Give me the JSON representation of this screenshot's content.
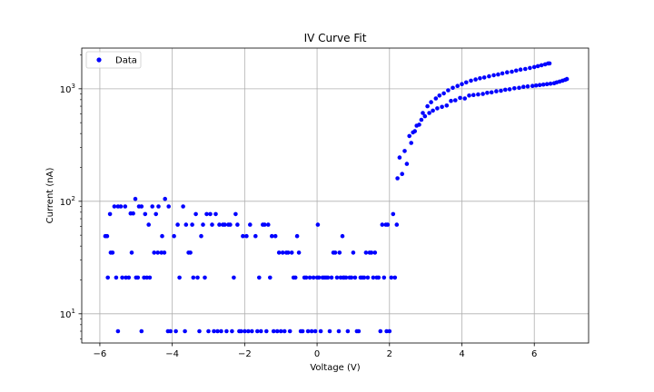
{
  "chart_data": {
    "type": "scatter",
    "title": "IV Curve Fit",
    "xlabel": "Voltage (V)",
    "ylabel": "Current (nA)",
    "xlim": [
      -6.5,
      7.5
    ],
    "ylim": [
      5.5,
      2300
    ],
    "yscale": "log",
    "grid": true,
    "legend": "top-left",
    "x_ticks": [
      {
        "value": -6,
        "label": "−6"
      },
      {
        "value": -4,
        "label": "−4"
      },
      {
        "value": -2,
        "label": "−2"
      },
      {
        "value": 0,
        "label": "0"
      },
      {
        "value": 2,
        "label": "2"
      },
      {
        "value": 4,
        "label": "4"
      },
      {
        "value": 6,
        "label": "6"
      }
    ],
    "y_ticks": [
      {
        "value": 10,
        "base": "10",
        "exp": "1"
      },
      {
        "value": 100,
        "base": "10",
        "exp": "2"
      },
      {
        "value": 1000,
        "base": "10",
        "exp": "3"
      }
    ],
    "series": [
      {
        "name": "Data",
        "color": "#0000ff",
        "marker": "circle",
        "points": [
          [
            -5.85,
            49
          ],
          [
            -5.8,
            49
          ],
          [
            -5.78,
            21
          ],
          [
            -5.72,
            77
          ],
          [
            -5.7,
            35
          ],
          [
            -5.65,
            35
          ],
          [
            -5.6,
            90
          ],
          [
            -5.55,
            21
          ],
          [
            -5.5,
            7
          ],
          [
            -5.5,
            90
          ],
          [
            -5.42,
            90
          ],
          [
            -5.38,
            21
          ],
          [
            -5.3,
            90
          ],
          [
            -5.28,
            21
          ],
          [
            -5.2,
            21
          ],
          [
            -5.15,
            78
          ],
          [
            -5.12,
            35
          ],
          [
            -5.08,
            78
          ],
          [
            -5.02,
            105
          ],
          [
            -5.0,
            21
          ],
          [
            -4.95,
            21
          ],
          [
            -4.92,
            90
          ],
          [
            -4.85,
            7
          ],
          [
            -4.85,
            90
          ],
          [
            -4.78,
            21
          ],
          [
            -4.75,
            77
          ],
          [
            -4.7,
            21
          ],
          [
            -4.65,
            62
          ],
          [
            -4.62,
            21
          ],
          [
            -4.55,
            90
          ],
          [
            -4.5,
            35
          ],
          [
            -4.45,
            77
          ],
          [
            -4.4,
            35
          ],
          [
            -4.38,
            90
          ],
          [
            -4.3,
            35
          ],
          [
            -4.28,
            49
          ],
          [
            -4.22,
            35
          ],
          [
            -4.2,
            105
          ],
          [
            -4.12,
            7
          ],
          [
            -4.1,
            90
          ],
          [
            -4.05,
            7
          ],
          [
            -3.95,
            49
          ],
          [
            -3.9,
            7
          ],
          [
            -3.85,
            62
          ],
          [
            -3.8,
            21
          ],
          [
            -3.7,
            90
          ],
          [
            -3.65,
            7
          ],
          [
            -3.62,
            62
          ],
          [
            -3.55,
            35
          ],
          [
            -3.5,
            35
          ],
          [
            -3.45,
            62
          ],
          [
            -3.42,
            21
          ],
          [
            -3.35,
            77
          ],
          [
            -3.3,
            21
          ],
          [
            -3.25,
            7
          ],
          [
            -3.2,
            49
          ],
          [
            -3.15,
            62
          ],
          [
            -3.1,
            21
          ],
          [
            -3.05,
            77
          ],
          [
            -3.0,
            7
          ],
          [
            -2.95,
            77
          ],
          [
            -2.9,
            62
          ],
          [
            -2.85,
            7
          ],
          [
            -2.8,
            77
          ],
          [
            -2.75,
            7
          ],
          [
            -2.7,
            62
          ],
          [
            -2.65,
            7
          ],
          [
            -2.6,
            62
          ],
          [
            -2.55,
            62
          ],
          [
            -2.5,
            7
          ],
          [
            -2.45,
            62
          ],
          [
            -2.4,
            62
          ],
          [
            -2.35,
            7
          ],
          [
            -2.3,
            21
          ],
          [
            -2.25,
            77
          ],
          [
            -2.2,
            62
          ],
          [
            -2.15,
            7
          ],
          [
            -2.1,
            7
          ],
          [
            -2.05,
            49
          ],
          [
            -2.0,
            7
          ],
          [
            -1.95,
            49
          ],
          [
            -1.9,
            7
          ],
          [
            -1.85,
            62
          ],
          [
            -1.8,
            7
          ],
          [
            -1.7,
            49
          ],
          [
            -1.65,
            7
          ],
          [
            -1.6,
            21
          ],
          [
            -1.55,
            7
          ],
          [
            -1.5,
            62
          ],
          [
            -1.45,
            62
          ],
          [
            -1.4,
            7
          ],
          [
            -1.35,
            62
          ],
          [
            -1.3,
            21
          ],
          [
            -1.25,
            49
          ],
          [
            -1.2,
            7
          ],
          [
            -1.15,
            49
          ],
          [
            -1.1,
            7
          ],
          [
            -1.05,
            35
          ],
          [
            -1.0,
            7
          ],
          [
            -0.95,
            35
          ],
          [
            -0.9,
            7
          ],
          [
            -0.85,
            35
          ],
          [
            -0.8,
            35
          ],
          [
            -0.75,
            7
          ],
          [
            -0.7,
            35
          ],
          [
            -0.65,
            21
          ],
          [
            -0.6,
            21
          ],
          [
            -0.55,
            49
          ],
          [
            -0.5,
            35
          ],
          [
            -0.45,
            7
          ],
          [
            -0.4,
            7
          ],
          [
            -0.35,
            21
          ],
          [
            -0.3,
            21
          ],
          [
            -0.25,
            7
          ],
          [
            -0.2,
            21
          ],
          [
            -0.15,
            7
          ],
          [
            -0.1,
            21
          ],
          [
            -0.05,
            7
          ],
          [
            0.0,
            21
          ],
          [
            0.02,
            62
          ],
          [
            0.05,
            21
          ],
          [
            0.1,
            7
          ],
          [
            0.15,
            21
          ],
          [
            0.2,
            21
          ],
          [
            0.25,
            21
          ],
          [
            0.3,
            21
          ],
          [
            0.35,
            7
          ],
          [
            0.4,
            21
          ],
          [
            0.45,
            35
          ],
          [
            0.5,
            35
          ],
          [
            0.55,
            21
          ],
          [
            0.6,
            7
          ],
          [
            0.62,
            35
          ],
          [
            0.65,
            21
          ],
          [
            0.7,
            49
          ],
          [
            0.72,
            21
          ],
          [
            0.75,
            21
          ],
          [
            0.8,
            21
          ],
          [
            0.85,
            7
          ],
          [
            0.9,
            21
          ],
          [
            0.95,
            21
          ],
          [
            1.0,
            35
          ],
          [
            1.05,
            21
          ],
          [
            1.1,
            7
          ],
          [
            1.15,
            7
          ],
          [
            1.2,
            21
          ],
          [
            1.25,
            21
          ],
          [
            1.3,
            21
          ],
          [
            1.35,
            35
          ],
          [
            1.4,
            21
          ],
          [
            1.45,
            35
          ],
          [
            1.5,
            35
          ],
          [
            1.55,
            21
          ],
          [
            1.6,
            35
          ],
          [
            1.65,
            21
          ],
          [
            1.7,
            21
          ],
          [
            1.75,
            7
          ],
          [
            1.8,
            62
          ],
          [
            1.85,
            21
          ],
          [
            1.9,
            62
          ],
          [
            1.92,
            7
          ],
          [
            1.95,
            62
          ],
          [
            2.0,
            7
          ],
          [
            2.05,
            21
          ],
          [
            2.1,
            77
          ],
          [
            2.15,
            21
          ],
          [
            2.2,
            62
          ],
          [
            2.22,
            160
          ],
          [
            2.28,
            245
          ],
          [
            2.35,
            175
          ],
          [
            2.42,
            280
          ],
          [
            2.48,
            215
          ],
          [
            2.55,
            380
          ],
          [
            2.6,
            330
          ],
          [
            2.65,
            410
          ],
          [
            2.7,
            420
          ],
          [
            2.75,
            470
          ],
          [
            2.82,
            480
          ],
          [
            2.88,
            530
          ],
          [
            2.92,
            610
          ],
          [
            2.98,
            570
          ],
          [
            3.05,
            700
          ],
          [
            3.1,
            610
          ],
          [
            3.15,
            760
          ],
          [
            3.2,
            640
          ],
          [
            3.28,
            820
          ],
          [
            3.32,
            670
          ],
          [
            3.38,
            870
          ],
          [
            3.45,
            690
          ],
          [
            3.5,
            910
          ],
          [
            3.58,
            710
          ],
          [
            3.62,
            970
          ],
          [
            3.7,
            780
          ],
          [
            3.75,
            1020
          ],
          [
            3.82,
            790
          ],
          [
            3.88,
            1060
          ],
          [
            3.95,
            830
          ],
          [
            4.0,
            1100
          ],
          [
            4.08,
            820
          ],
          [
            4.12,
            1140
          ],
          [
            4.2,
            870
          ],
          [
            4.25,
            1180
          ],
          [
            4.32,
            880
          ],
          [
            4.38,
            1210
          ],
          [
            4.45,
            890
          ],
          [
            4.5,
            1240
          ],
          [
            4.58,
            900
          ],
          [
            4.62,
            1260
          ],
          [
            4.7,
            920
          ],
          [
            4.75,
            1290
          ],
          [
            4.82,
            930
          ],
          [
            4.88,
            1320
          ],
          [
            4.95,
            950
          ],
          [
            5.0,
            1340
          ],
          [
            5.08,
            960
          ],
          [
            5.12,
            1370
          ],
          [
            5.2,
            980
          ],
          [
            5.25,
            1400
          ],
          [
            5.32,
            990
          ],
          [
            5.38,
            1420
          ],
          [
            5.45,
            1010
          ],
          [
            5.5,
            1450
          ],
          [
            5.58,
            1020
          ],
          [
            5.62,
            1480
          ],
          [
            5.7,
            1040
          ],
          [
            5.75,
            1500
          ],
          [
            5.82,
            1050
          ],
          [
            5.88,
            1530
          ],
          [
            5.95,
            1060
          ],
          [
            6.0,
            1560
          ],
          [
            6.05,
            1070
          ],
          [
            6.1,
            1590
          ],
          [
            6.15,
            1080
          ],
          [
            6.2,
            1620
          ],
          [
            6.25,
            1090
          ],
          [
            6.3,
            1650
          ],
          [
            6.35,
            1100
          ],
          [
            6.38,
            1680
          ],
          [
            6.42,
            1680
          ],
          [
            6.45,
            1110
          ],
          [
            6.55,
            1120
          ],
          [
            6.62,
            1140
          ],
          [
            6.7,
            1160
          ],
          [
            6.78,
            1180
          ],
          [
            6.85,
            1200
          ],
          [
            6.9,
            1220
          ]
        ]
      }
    ]
  }
}
